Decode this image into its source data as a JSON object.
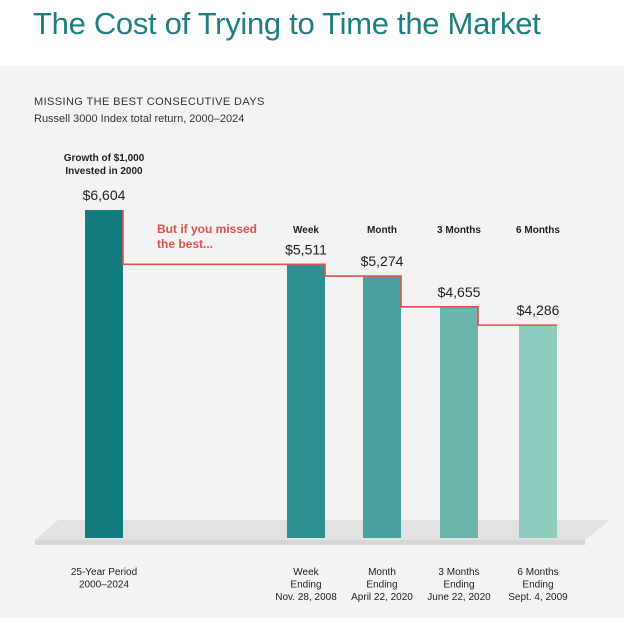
{
  "title": "The Cost of Trying to Time the Market",
  "heading": "MISSING THE BEST CONSECUTIVE DAYS",
  "subheading": "Russell 3000 Index total return, 2000–2024",
  "annotation": [
    "But if you missed",
    "the best..."
  ],
  "colors": {
    "title": "#1f7f80",
    "annotation": "#e0504a",
    "step_line": "#e0504a",
    "bars": [
      "#127b7d",
      "#2d8f90",
      "#4aa1a0",
      "#6cb5ac",
      "#8fcdc1"
    ]
  },
  "chart_data": {
    "type": "bar",
    "title": "",
    "xlabel": "",
    "ylabel": "",
    "ylim": [
      0,
      7000
    ],
    "grid": false,
    "categories": [
      "25-Year Period 2000–2024",
      "Week Ending Nov. 28, 2008",
      "Month Ending April 22, 2020",
      "3 Months Ending June 22, 2020",
      "6 Months Ending Sept. 4, 2009"
    ],
    "values": [
      6604,
      5511,
      5274,
      4655,
      4286
    ],
    "value_labels": [
      "$6,604",
      "$5,511",
      "$5,274",
      "$4,655",
      "$4,286"
    ],
    "top_labels": [
      [
        "Growth of $1,000",
        "Invested in 2000"
      ],
      [
        "Week"
      ],
      [
        "Month"
      ],
      [
        "3 Months"
      ],
      [
        "6 Months"
      ]
    ],
    "bottom_labels": [
      [
        "25-Year Period",
        "2000–2024"
      ],
      [
        "Week",
        "Ending",
        "Nov. 28, 2008"
      ],
      [
        "Month",
        "Ending",
        "April 22, 2020"
      ],
      [
        "3 Months",
        "Ending",
        "June 22, 2020"
      ],
      [
        "6 Months",
        "Ending",
        "Sept. 4, 2009"
      ]
    ]
  }
}
